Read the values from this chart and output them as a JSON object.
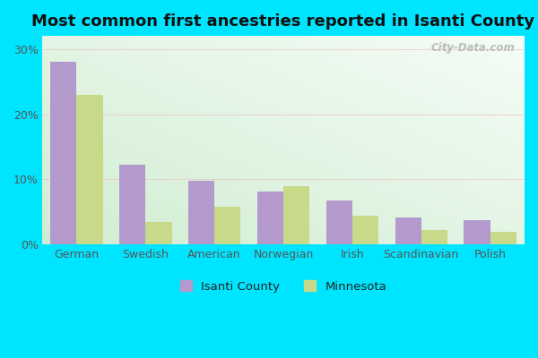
{
  "title": "Most common first ancestries reported in Isanti County",
  "categories": [
    "German",
    "Swedish",
    "American",
    "Norwegian",
    "Irish",
    "Scandinavian",
    "Polish"
  ],
  "isanti_values": [
    28.0,
    12.2,
    9.8,
    8.2,
    6.8,
    4.2,
    3.8
  ],
  "minnesota_values": [
    23.0,
    3.5,
    5.8,
    9.0,
    4.5,
    2.2,
    2.0
  ],
  "isanti_color": "#b399cc",
  "minnesota_color": "#c8d98a",
  "bar_width": 0.38,
  "ylim": [
    0,
    32
  ],
  "ytick_vals": [
    0,
    10,
    20,
    30
  ],
  "ytick_labels": [
    "0%",
    "10%",
    "20%",
    "30%"
  ],
  "background_outer": "#00e5ff",
  "grid_color": "#e8e8e8",
  "title_fontsize": 13,
  "legend_label_isanti": "Isanti County",
  "legend_label_minnesota": "Minnesota",
  "watermark_text": "City-Data.com"
}
